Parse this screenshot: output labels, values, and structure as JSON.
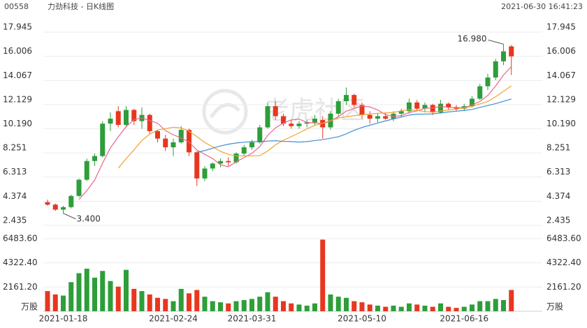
{
  "header": {
    "code": "00558",
    "title": "力劲科技 - 日K线图",
    "time": "2021-06-30 16:41:23"
  },
  "watermark": "老虎社区",
  "chart_data": {
    "type": "candlestick",
    "categories": [
      null,
      null,
      "2021-01-18",
      null,
      null,
      null,
      null,
      null,
      null,
      null,
      null,
      null,
      null,
      null,
      null,
      null,
      "2021-02-24",
      null,
      null,
      null,
      null,
      null,
      null,
      null,
      null,
      null,
      "2021-03-31",
      null,
      null,
      null,
      null,
      null,
      null,
      null,
      null,
      null,
      null,
      null,
      null,
      null,
      "2021-05-10",
      null,
      null,
      null,
      null,
      null,
      null,
      null,
      null,
      null,
      null,
      null,
      null,
      "2021-06-16",
      null,
      null,
      null,
      null,
      null,
      null
    ],
    "open": [
      4.3,
      4.1,
      3.7,
      3.9,
      4.8,
      6.1,
      7.6,
      8.0,
      10.6,
      11.6,
      10.5,
      11.7,
      10.8,
      11.3,
      10.0,
      9.4,
      8.7,
      9.1,
      10.1,
      8.3,
      6.2,
      7.0,
      7.4,
      7.6,
      7.5,
      8.2,
      8.7,
      9.1,
      10.3,
      12.0,
      11.2,
      10.6,
      10.4,
      10.6,
      10.7,
      10.9,
      10.3,
      11.4,
      12.4,
      12.9,
      12.1,
      11.3,
      11.0,
      11.2,
      11.0,
      11.4,
      11.6,
      12.3,
      11.8,
      12.1,
      11.5,
      12.2,
      11.9,
      11.8,
      12.0,
      12.6,
      13.6,
      14.3,
      15.6,
      16.8
    ],
    "high": [
      4.5,
      4.2,
      4.0,
      4.9,
      6.2,
      7.8,
      8.2,
      10.8,
      11.5,
      12.0,
      12.0,
      11.8,
      11.9,
      11.4,
      10.1,
      9.7,
      9.4,
      10.4,
      10.2,
      8.4,
      7.2,
      7.5,
      7.8,
      7.9,
      8.3,
      8.9,
      9.3,
      10.5,
      12.3,
      12.4,
      11.4,
      10.9,
      10.8,
      10.9,
      11.3,
      11.2,
      11.6,
      12.6,
      13.5,
      13.0,
      12.3,
      11.6,
      11.4,
      11.5,
      11.6,
      11.8,
      12.6,
      12.5,
      12.3,
      12.2,
      12.5,
      12.3,
      12.1,
      12.2,
      12.8,
      13.8,
      14.6,
      15.8,
      16.98,
      16.9
    ],
    "low": [
      4.0,
      3.6,
      3.4,
      3.8,
      4.7,
      6.0,
      7.2,
      7.9,
      10.0,
      10.3,
      10.3,
      10.5,
      10.2,
      9.8,
      9.1,
      8.4,
      8.0,
      9.0,
      8.0,
      5.6,
      6.0,
      6.8,
      7.1,
      7.2,
      7.4,
      8.0,
      8.5,
      9.0,
      10.2,
      10.9,
      10.4,
      10.2,
      10.2,
      10.3,
      10.5,
      9.4,
      10.1,
      11.2,
      12.1,
      11.9,
      11.0,
      10.6,
      10.7,
      10.9,
      10.8,
      11.1,
      11.4,
      11.6,
      11.5,
      11.3,
      11.4,
      11.7,
      11.6,
      11.6,
      11.9,
      12.5,
      13.3,
      14.1,
      15.3,
      14.5
    ],
    "close": [
      4.1,
      3.7,
      3.9,
      4.8,
      6.1,
      7.6,
      8.0,
      10.6,
      11.0,
      10.5,
      11.7,
      10.8,
      11.3,
      10.0,
      9.4,
      8.7,
      9.1,
      10.1,
      8.3,
      6.2,
      7.0,
      7.4,
      7.6,
      7.5,
      8.2,
      8.7,
      9.1,
      10.3,
      12.0,
      11.2,
      10.6,
      10.4,
      10.6,
      10.7,
      11.0,
      10.3,
      11.4,
      12.4,
      12.9,
      12.1,
      11.3,
      11.0,
      11.2,
      11.0,
      11.4,
      11.6,
      12.3,
      11.8,
      12.1,
      11.5,
      12.2,
      11.9,
      11.8,
      12.0,
      12.6,
      13.6,
      14.3,
      15.6,
      16.4,
      16.0
    ],
    "volume": [
      1800,
      1500,
      1400,
      2600,
      3400,
      3800,
      3000,
      3600,
      2700,
      2200,
      3700,
      2000,
      1800,
      1500,
      1200,
      1100,
      900,
      2000,
      1600,
      1900,
      1300,
      900,
      800,
      700,
      900,
      1000,
      1100,
      1300,
      1700,
      1300,
      900,
      700,
      600,
      500,
      700,
      6400,
      1500,
      1300,
      1200,
      900,
      800,
      600,
      500,
      400,
      500,
      400,
      700,
      600,
      500,
      400,
      700,
      400,
      300,
      400,
      600,
      900,
      900,
      1100,
      1000,
      1900
    ],
    "ma_lines": [
      {
        "color": "#e8668c",
        "values": [
          null,
          null,
          null,
          null,
          4.52,
          5.22,
          6.08,
          7.42,
          8.66,
          9.54,
          10.36,
          10.92,
          11.06,
          10.86,
          10.64,
          10.04,
          9.7,
          9.46,
          9.12,
          8.48,
          8.14,
          7.8,
          7.3,
          7.14,
          7.54,
          7.88,
          8.22,
          8.76,
          9.66,
          10.26,
          10.64,
          10.9,
          10.96,
          10.7,
          10.66,
          10.6,
          10.8,
          11.16,
          11.6,
          11.82,
          12.02,
          11.94,
          11.7,
          11.32,
          11.18,
          11.24,
          11.5,
          11.62,
          11.84,
          11.86,
          11.98,
          11.9,
          11.9,
          11.88,
          12.1,
          12.38,
          12.86,
          13.62,
          14.5,
          15.18
        ]
      },
      {
        "color": "#f0a232",
        "values": [
          null,
          null,
          null,
          null,
          null,
          null,
          null,
          null,
          null,
          7.03,
          7.79,
          8.5,
          9.24,
          9.76,
          10.09,
          10.2,
          10.31,
          10.26,
          9.99,
          9.56,
          9.09,
          8.75,
          8.38,
          8.13,
          8.01,
          8.01,
          8.01,
          8.03,
          8.4,
          8.9,
          9.26,
          9.56,
          9.86,
          10.18,
          10.46,
          10.62,
          10.85,
          11.06,
          11.15,
          11.24,
          11.31,
          11.37,
          11.43,
          11.46,
          11.5,
          11.63,
          11.72,
          11.66,
          11.58,
          11.52,
          11.61,
          11.7,
          11.76,
          11.86,
          11.98,
          12.18,
          12.38,
          12.76,
          13.19,
          13.64
        ]
      },
      {
        "color": "#3d8fd6",
        "values": [
          null,
          null,
          null,
          null,
          null,
          null,
          null,
          null,
          null,
          null,
          null,
          null,
          null,
          null,
          null,
          null,
          null,
          null,
          null,
          8.3,
          8.44,
          8.63,
          8.81,
          8.95,
          9.05,
          9.11,
          9.16,
          9.15,
          9.2,
          9.23,
          9.18,
          9.16,
          9.12,
          9.16,
          9.24,
          9.32,
          9.43,
          9.55,
          9.78,
          10.07,
          10.29,
          10.47,
          10.65,
          10.82,
          10.98,
          11.13,
          11.29,
          11.36,
          11.37,
          11.38,
          11.46,
          11.54,
          11.6,
          11.66,
          11.74,
          11.91,
          12.05,
          12.21,
          12.39,
          12.58
        ]
      }
    ],
    "up_color": "#2e9e3a",
    "down_color": "#e8361f",
    "high_label": "16.980",
    "low_label": "3.400",
    "ylim": [
      2.435,
      17.945
    ],
    "yticks": [
      2.435,
      4.374,
      6.313,
      8.251,
      {
        "value": 10.19,
        "label": "10.190"
      },
      12.129,
      14.067,
      16.006,
      17.945
    ],
    "volume_ylim": [
      0,
      6483.6
    ],
    "volume_yticks": [
      {
        "value": 2161.2,
        "label": "2161.20"
      },
      {
        "value": 4322.4,
        "label": "4322.40"
      },
      {
        "value": 6483.6,
        "label": "6483.60"
      }
    ],
    "volume_unit": "万股",
    "grid": true
  }
}
